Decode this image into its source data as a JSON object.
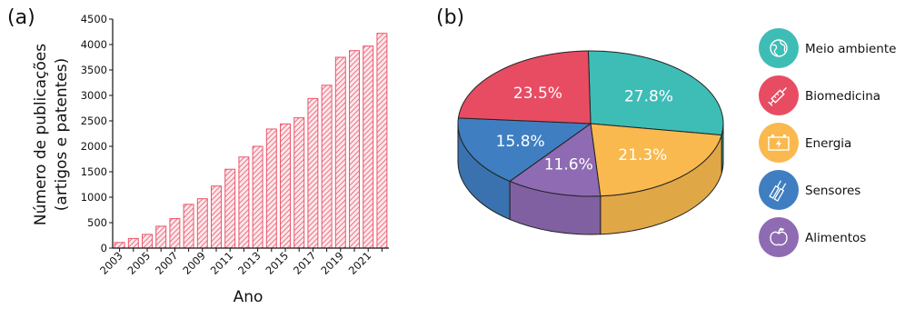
{
  "panel_labels": {
    "a": "(a)",
    "b": "(b)"
  },
  "chart_data": [
    {
      "type": "bar",
      "title": "",
      "xlabel": "Ano",
      "ylabel_line1": "Número de publicações",
      "ylabel_line2": "(artigos e patentes)",
      "ylim": [
        0,
        4500
      ],
      "yticks": [
        "0",
        "500",
        "1000",
        "1500",
        "2000",
        "2500",
        "3000",
        "3500",
        "4000",
        "4500"
      ],
      "categories": [
        "2003",
        "2004",
        "2005",
        "2006",
        "2007",
        "2008",
        "2009",
        "2010",
        "2011",
        "2012",
        "2013",
        "2014",
        "2015",
        "2016",
        "2017",
        "2018",
        "2019",
        "2020",
        "2021",
        "2022"
      ],
      "xtick_labels": [
        "2003",
        "2005",
        "2007",
        "2009",
        "2011",
        "2013",
        "2015",
        "2017",
        "2019",
        "2021"
      ],
      "values": [
        110,
        190,
        270,
        430,
        580,
        860,
        970,
        1220,
        1550,
        1790,
        2000,
        2340,
        2440,
        2560,
        2940,
        3200,
        3750,
        3880,
        3970,
        4220
      ],
      "bar_color": "#e8556a",
      "bar_pattern": "diagonal-hatch"
    },
    {
      "type": "pie",
      "style": "3d",
      "slices": [
        {
          "label": "Meio ambiente",
          "value": 27.8,
          "text": "27.8%",
          "color": "#3ebdb6"
        },
        {
          "label": "Energia",
          "value": 21.3,
          "text": "21.3%",
          "color": "#f9b94f"
        },
        {
          "label": "Alimentos",
          "value": 11.6,
          "text": "11.6%",
          "color": "#8f6bb3"
        },
        {
          "label": "Sensores",
          "value": 15.8,
          "text": "15.8%",
          "color": "#3f7fc1"
        },
        {
          "label": "Biomedicina",
          "value": 23.5,
          "text": "23.5%",
          "color": "#e84c63"
        }
      ]
    }
  ],
  "legend": [
    {
      "label": "Meio ambiente",
      "color": "#3ebdb6",
      "icon": "globe-icon"
    },
    {
      "label": "Biomedicina",
      "color": "#e84c63",
      "icon": "syringe-icon"
    },
    {
      "label": "Energia",
      "color": "#f9b94f",
      "icon": "battery-icon"
    },
    {
      "label": "Sensores",
      "color": "#3f7fc1",
      "icon": "sensor-icon"
    },
    {
      "label": "Alimentos",
      "color": "#8f6bb3",
      "icon": "apple-icon"
    }
  ]
}
